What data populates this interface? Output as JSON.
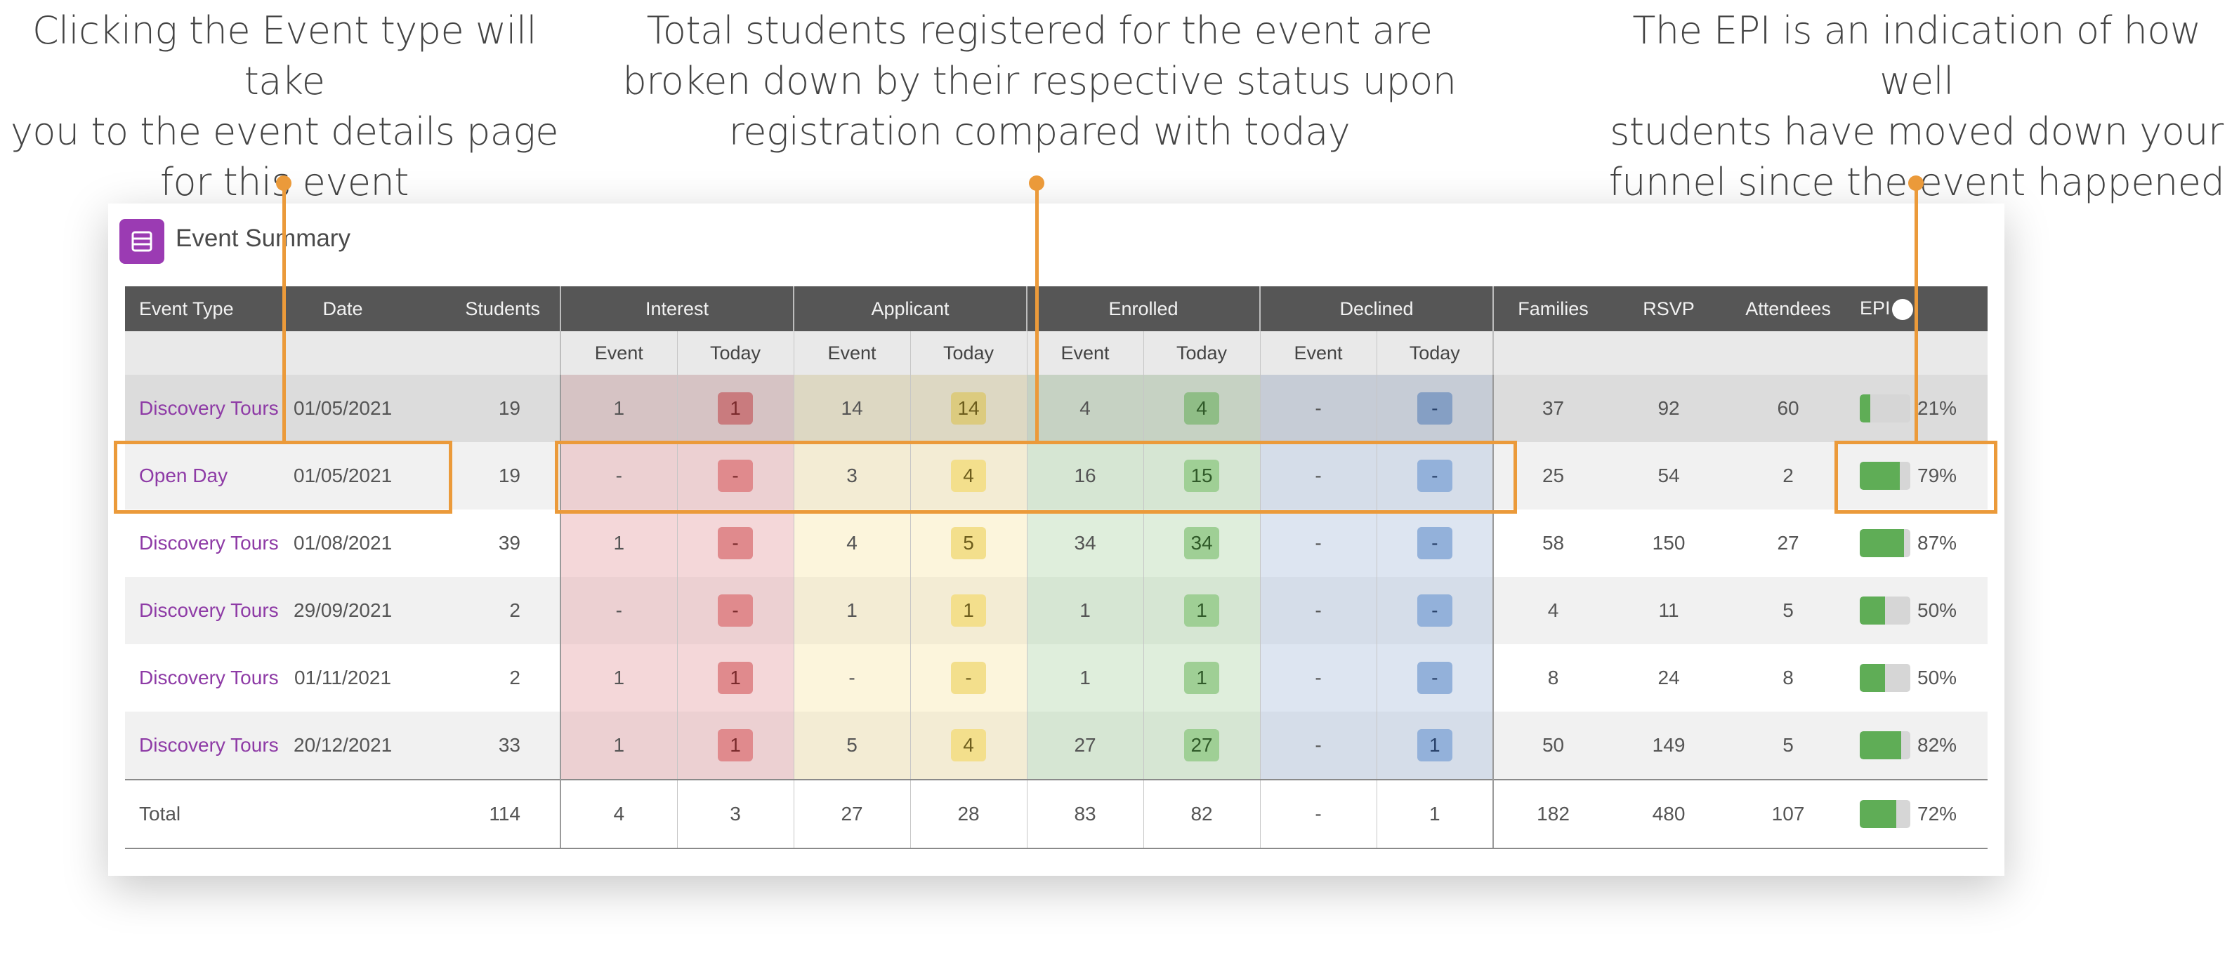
{
  "callouts": {
    "event_type": [
      "Clicking the Event type will take",
      "you to the event details page",
      "for this event"
    ],
    "statuses": [
      "Total students registered for the event are",
      "broken down by their respective status upon",
      "registration compared with today"
    ],
    "epi": [
      "The EPI is an indication of how well",
      "students have moved down your",
      "funnel since the event happened"
    ]
  },
  "panel": {
    "title": "Event Summary",
    "icon": "table-list-icon"
  },
  "table": {
    "headers": {
      "event_type": "Event Type",
      "date": "Date",
      "students": "Students",
      "interest": "Interest",
      "applicant": "Applicant",
      "enrolled": "Enrolled",
      "declined": "Declined",
      "families": "Families",
      "rsvp": "RSVP",
      "attendees": "Attendees",
      "epi": "EPI",
      "sub_event": "Event",
      "sub_today": "Today"
    },
    "rows": [
      {
        "event_type": "Discovery Tours",
        "date": "01/05/2021",
        "students": "19",
        "interest_event": "1",
        "interest_today": "1",
        "applicant_event": "14",
        "applicant_today": "14",
        "enrolled_event": "4",
        "enrolled_today": "4",
        "declined_event": "-",
        "declined_today": "-",
        "families": "37",
        "rsvp": "92",
        "attendees": "60",
        "epi": 0.21,
        "epi_label": "21%"
      },
      {
        "event_type": "Open Day",
        "date": "01/05/2021",
        "students": "19",
        "interest_event": "-",
        "interest_today": "-",
        "applicant_event": "3",
        "applicant_today": "4",
        "enrolled_event": "16",
        "enrolled_today": "15",
        "declined_event": "-",
        "declined_today": "-",
        "families": "25",
        "rsvp": "54",
        "attendees": "2",
        "epi": 0.79,
        "epi_label": "79%"
      },
      {
        "event_type": "Discovery Tours",
        "date": "01/08/2021",
        "students": "39",
        "interest_event": "1",
        "interest_today": "-",
        "applicant_event": "4",
        "applicant_today": "5",
        "enrolled_event": "34",
        "enrolled_today": "34",
        "declined_event": "-",
        "declined_today": "-",
        "families": "58",
        "rsvp": "150",
        "attendees": "27",
        "epi": 0.87,
        "epi_label": "87%"
      },
      {
        "event_type": "Discovery Tours",
        "date": "29/09/2021",
        "students": "2",
        "interest_event": "-",
        "interest_today": "-",
        "applicant_event": "1",
        "applicant_today": "1",
        "enrolled_event": "1",
        "enrolled_today": "1",
        "declined_event": "-",
        "declined_today": "-",
        "families": "4",
        "rsvp": "11",
        "attendees": "5",
        "epi": 0.5,
        "epi_label": "50%"
      },
      {
        "event_type": "Discovery Tours",
        "date": "01/11/2021",
        "students": "2",
        "interest_event": "1",
        "interest_today": "1",
        "applicant_event": "-",
        "applicant_today": "-",
        "enrolled_event": "1",
        "enrolled_today": "1",
        "declined_event": "-",
        "declined_today": "-",
        "families": "8",
        "rsvp": "24",
        "attendees": "8",
        "epi": 0.5,
        "epi_label": "50%"
      },
      {
        "event_type": "Discovery Tours",
        "date": "20/12/2021",
        "students": "33",
        "interest_event": "1",
        "interest_today": "1",
        "applicant_event": "5",
        "applicant_today": "4",
        "enrolled_event": "27",
        "enrolled_today": "27",
        "declined_event": "-",
        "declined_today": "1",
        "families": "50",
        "rsvp": "149",
        "attendees": "5",
        "epi": 0.82,
        "epi_label": "82%"
      }
    ],
    "total": {
      "label": "Total",
      "students": "114",
      "interest_event": "4",
      "interest_today": "3",
      "applicant_event": "27",
      "applicant_today": "28",
      "enrolled_event": "83",
      "enrolled_today": "82",
      "declined_event": "-",
      "declined_today": "1",
      "families": "182",
      "rsvp": "480",
      "attendees": "107",
      "epi": 0.72,
      "epi_label": "72%"
    }
  },
  "colors": {
    "accent": "#eb9a3a",
    "link": "#8e3ba6",
    "header_bg": "#565656",
    "interest": "#e08a8d",
    "applicant": "#f3df8c",
    "enrolled": "#9fcf95",
    "declined": "#93b1da",
    "epi_fill": "#5fad56"
  }
}
